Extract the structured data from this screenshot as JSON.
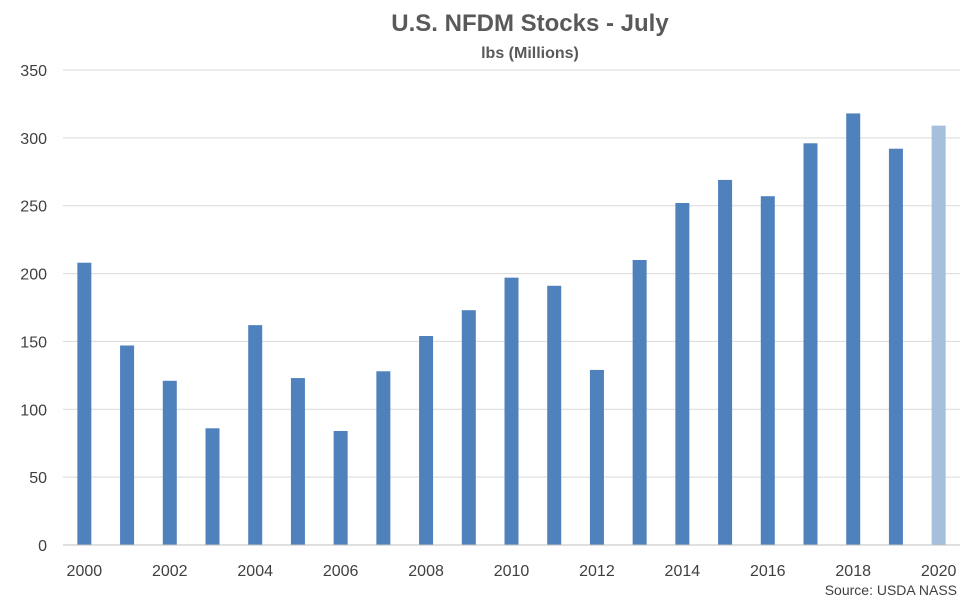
{
  "chart_data": {
    "type": "bar",
    "title": "U.S. NFDM Stocks - July",
    "subtitle": "lbs (Millions)",
    "xlabel": "",
    "ylabel": "",
    "ylim": [
      0,
      350
    ],
    "yticks": [
      0,
      50,
      100,
      150,
      200,
      250,
      300,
      350
    ],
    "categories": [
      "2000",
      "2001",
      "2002",
      "2003",
      "2004",
      "2005",
      "2006",
      "2007",
      "2008",
      "2009",
      "2010",
      "2011",
      "2012",
      "2013",
      "2014",
      "2015",
      "2016",
      "2017",
      "2018",
      "2019",
      "2020"
    ],
    "xtick_labels": [
      "2000",
      "2002",
      "2004",
      "2006",
      "2008",
      "2010",
      "2012",
      "2014",
      "2016",
      "2018",
      "2020"
    ],
    "values": [
      208,
      147,
      121,
      86,
      162,
      123,
      84,
      128,
      154,
      173,
      197,
      191,
      129,
      210,
      252,
      269,
      257,
      296,
      318,
      292,
      309
    ],
    "bar_color": "#4f81bd",
    "highlight_color": "#a6bfdb",
    "highlight_category": "2020",
    "grid": true,
    "legend": "none",
    "source": "Source: USDA NASS"
  }
}
